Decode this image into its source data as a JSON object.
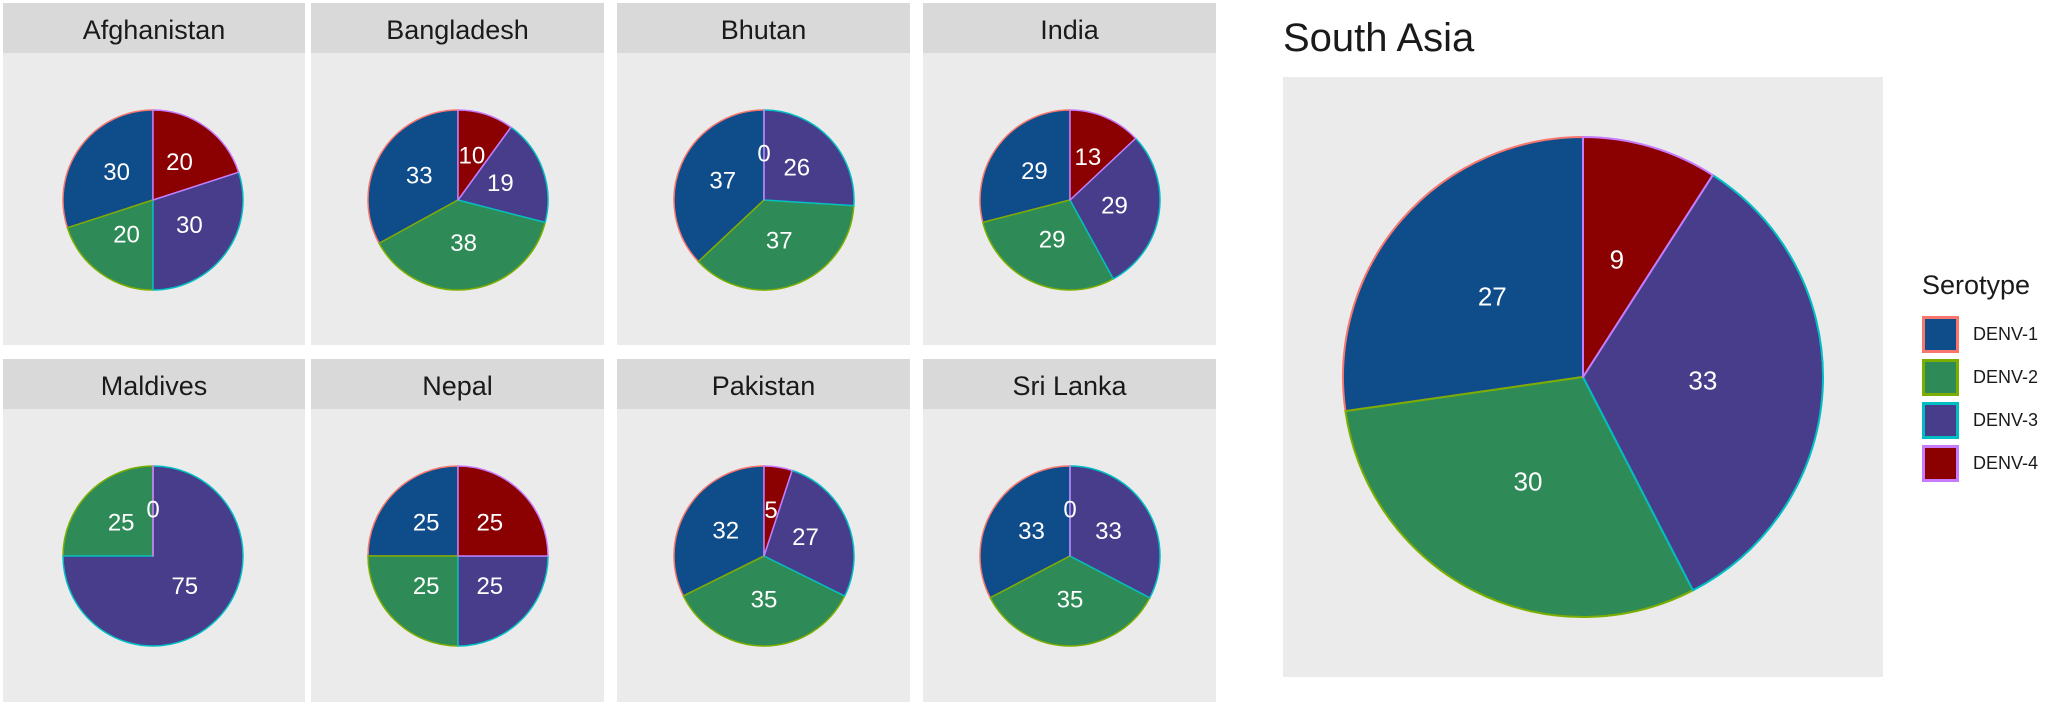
{
  "chart_data": [
    {
      "type": "pie",
      "title": "Afghanistan",
      "categories": [
        "DENV-1",
        "DENV-2",
        "DENV-3",
        "DENV-4"
      ],
      "values": [
        30,
        20,
        30,
        20
      ]
    },
    {
      "type": "pie",
      "title": "Bangladesh",
      "categories": [
        "DENV-1",
        "DENV-2",
        "DENV-3",
        "DENV-4"
      ],
      "values": [
        33,
        38,
        19,
        10
      ]
    },
    {
      "type": "pie",
      "title": "Bhutan",
      "categories": [
        "DENV-1",
        "DENV-2",
        "DENV-3",
        "DENV-4"
      ],
      "values": [
        37,
        37,
        26,
        0
      ]
    },
    {
      "type": "pie",
      "title": "India",
      "categories": [
        "DENV-1",
        "DENV-2",
        "DENV-3",
        "DENV-4"
      ],
      "values": [
        29,
        29,
        29,
        13
      ]
    },
    {
      "type": "pie",
      "title": "Maldives",
      "categories": [
        "DENV-1",
        "DENV-2",
        "DENV-3",
        "DENV-4"
      ],
      "values": [
        0,
        25,
        75,
        0
      ]
    },
    {
      "type": "pie",
      "title": "Nepal",
      "categories": [
        "DENV-1",
        "DENV-2",
        "DENV-3",
        "DENV-4"
      ],
      "values": [
        25,
        25,
        25,
        25
      ]
    },
    {
      "type": "pie",
      "title": "Pakistan",
      "categories": [
        "DENV-1",
        "DENV-2",
        "DENV-3",
        "DENV-4"
      ],
      "values": [
        32,
        35,
        27,
        5
      ]
    },
    {
      "type": "pie",
      "title": "Sri Lanka",
      "categories": [
        "DENV-1",
        "DENV-2",
        "DENV-3",
        "DENV-4"
      ],
      "values": [
        33,
        35,
        33,
        0
      ]
    },
    {
      "type": "pie",
      "title": "South Asia",
      "categories": [
        "DENV-1",
        "DENV-2",
        "DENV-3",
        "DENV-4"
      ],
      "values": [
        27,
        30,
        33,
        9
      ]
    }
  ],
  "legend": {
    "title": "Serotype",
    "placement": "right",
    "items": [
      {
        "label": "DENV-1",
        "fill": "#0f4c8a",
        "outline": "#f8766d"
      },
      {
        "label": "DENV-2",
        "fill": "#2e8b57",
        "outline": "#7cae00"
      },
      {
        "label": "DENV-3",
        "fill": "#483d8b",
        "outline": "#00bfc4"
      },
      {
        "label": "DENV-4",
        "fill": "#8b0000",
        "outline": "#c77cff"
      }
    ]
  }
}
